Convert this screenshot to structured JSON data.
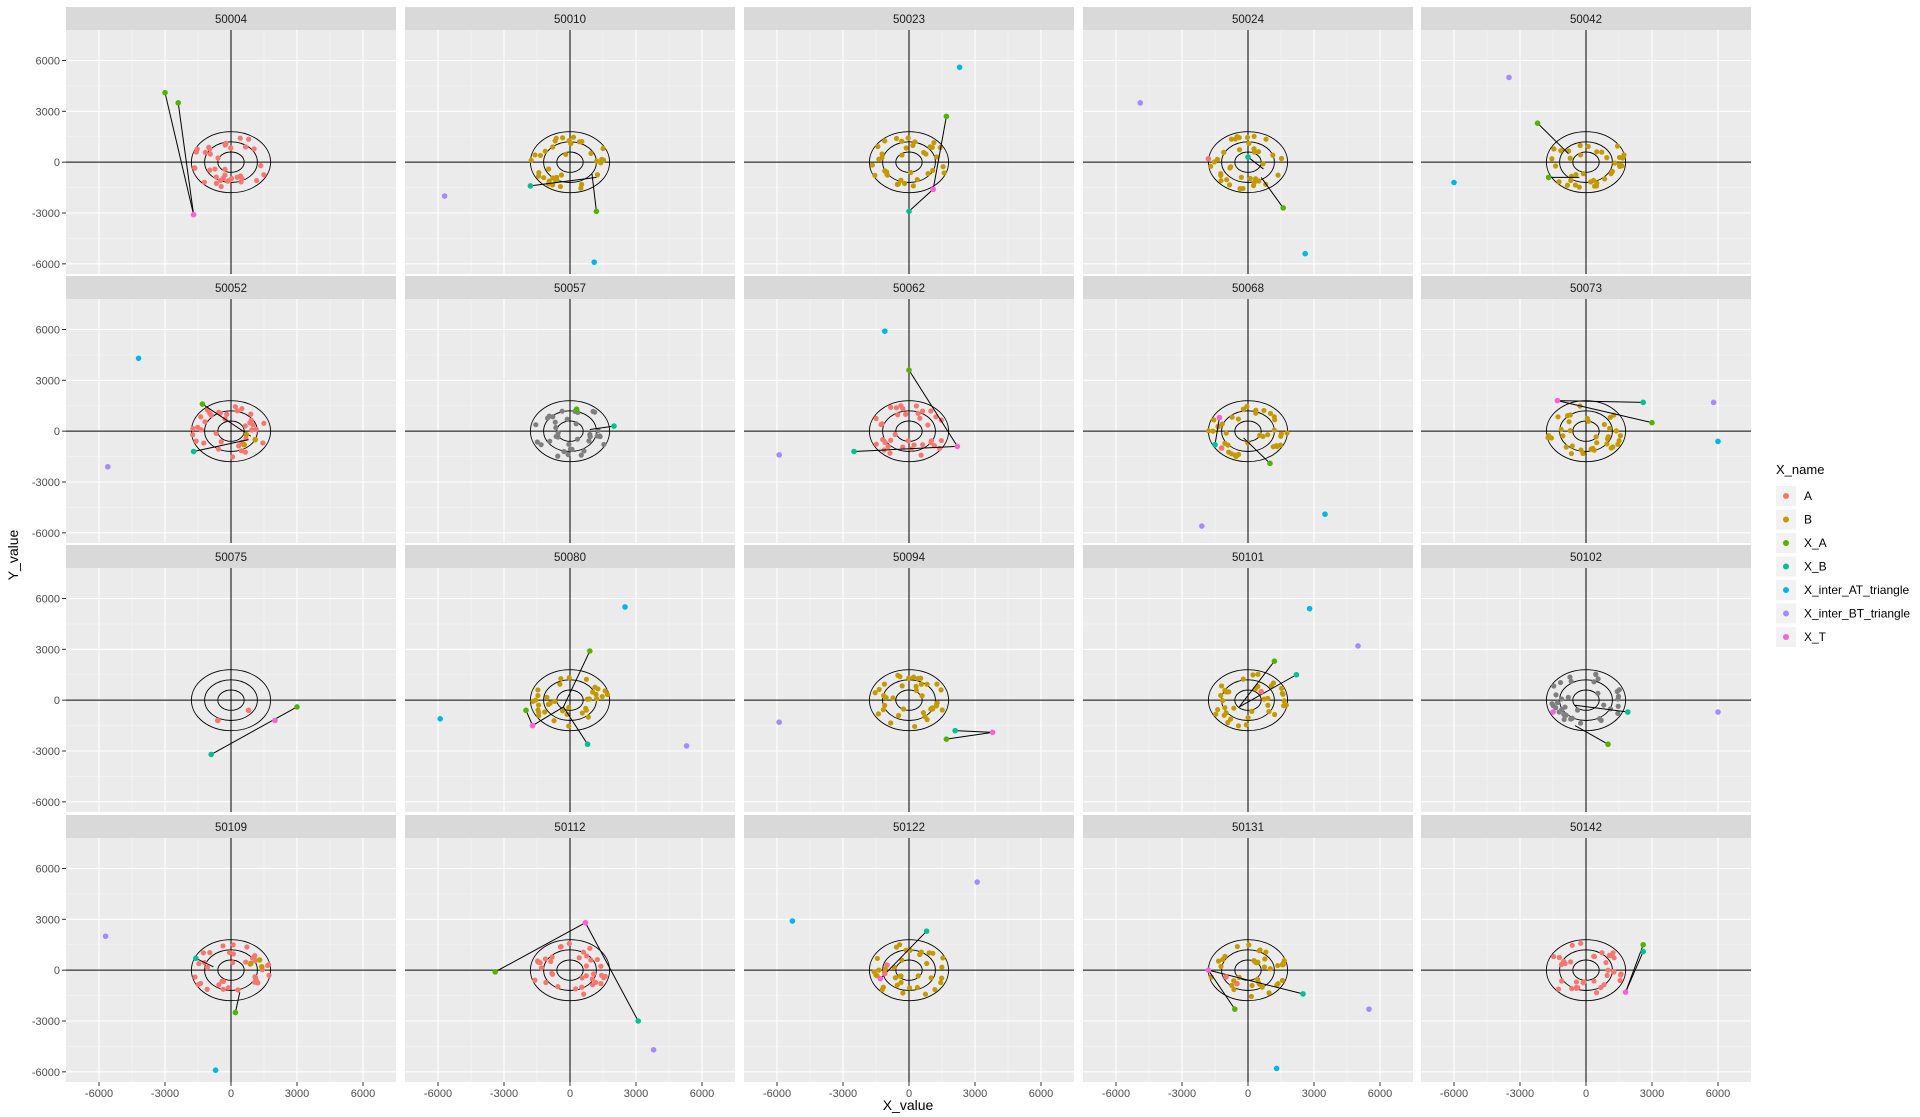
{
  "chart_data": {
    "type": "scatter",
    "xlabel": "X_value",
    "ylabel": "Y_value",
    "xlim": [
      -7500,
      7500
    ],
    "ylim": [
      -6600,
      7800
    ],
    "x_ticks": [
      -6000,
      -3000,
      0,
      3000,
      6000
    ],
    "y_ticks": [
      -6000,
      -3000,
      0,
      3000,
      6000
    ],
    "grid": true,
    "legend": {
      "title": "X_name",
      "position": "right",
      "entries": [
        {
          "name": "A",
          "color": "#F8766D"
        },
        {
          "name": "B",
          "color": "#C49A00"
        },
        {
          "name": "X_A",
          "color": "#53B400"
        },
        {
          "name": "X_B",
          "color": "#00C094"
        },
        {
          "name": "X_inter_AT_triangle",
          "color": "#00B6EB"
        },
        {
          "name": "X_inter_BT_triangle",
          "color": "#A58AFF"
        },
        {
          "name": "X_T",
          "color": "#FB61D7"
        }
      ]
    },
    "unlabeled_color": "#7F7F7F",
    "ellipses": [
      {
        "rx": 600,
        "ry": 600
      },
      {
        "rx": 1200,
        "ry": 1200
      },
      {
        "rx": 1800,
        "ry": 1800
      }
    ],
    "panels": [
      {
        "id": "50004",
        "cloud": "A",
        "special": [
          {
            "c": "X_A",
            "x": -3000,
            "y": 4100
          },
          {
            "c": "X_A",
            "x": -2400,
            "y": 3500
          },
          {
            "c": "X_T",
            "x": -1700,
            "y": -3100
          }
        ],
        "lines": [
          [
            -3000,
            4100,
            -1700,
            -3100
          ],
          [
            -2400,
            3500,
            -1700,
            -3100
          ]
        ]
      },
      {
        "id": "50010",
        "cloud": "B",
        "special": [
          {
            "c": "X_B",
            "x": -1800,
            "y": -1400
          },
          {
            "c": "X_A",
            "x": 1200,
            "y": -2900
          },
          {
            "c": "X_inter_AT_triangle",
            "x": 1100,
            "y": -5900
          },
          {
            "c": "X_inter_BT_triangle",
            "x": -5700,
            "y": -2000
          }
        ],
        "lines": [
          [
            -1800,
            -1400,
            1200,
            -900
          ],
          [
            1200,
            -2900,
            1000,
            -700
          ]
        ]
      },
      {
        "id": "50023",
        "cloud": "B",
        "special": [
          {
            "c": "X_A",
            "x": 1700,
            "y": 2700
          },
          {
            "c": "X_B",
            "x": 0,
            "y": -2900
          },
          {
            "c": "X_T",
            "x": 1100,
            "y": -1600
          },
          {
            "c": "X_inter_AT_triangle",
            "x": 2300,
            "y": 5600
          }
        ],
        "lines": [
          [
            1700,
            2700,
            1100,
            -1600
          ],
          [
            0,
            -2900,
            1100,
            -1600
          ]
        ]
      },
      {
        "id": "50024",
        "cloud": "B",
        "special": [
          {
            "c": "X_A",
            "x": 1600,
            "y": -2700
          },
          {
            "c": "X_B",
            "x": 0,
            "y": 300
          },
          {
            "c": "X_inter_AT_triangle",
            "x": 2600,
            "y": -5400
          },
          {
            "c": "X_inter_BT_triangle",
            "x": -4900,
            "y": 3500
          },
          {
            "c": "A",
            "x": -1800,
            "y": 200
          }
        ],
        "lines": [
          [
            1600,
            -2700,
            600,
            -900
          ],
          [
            0,
            300,
            700,
            -400
          ]
        ]
      },
      {
        "id": "50042",
        "cloud": "B",
        "special": [
          {
            "c": "X_A",
            "x": -2200,
            "y": 2300
          },
          {
            "c": "X_A",
            "x": -1700,
            "y": -900
          },
          {
            "c": "X_inter_AT_triangle",
            "x": -6000,
            "y": -1200
          },
          {
            "c": "X_inter_BT_triangle",
            "x": -3500,
            "y": 5000
          }
        ],
        "lines": [
          [
            -2200,
            2300,
            -800,
            500
          ],
          [
            -1700,
            -900,
            -300,
            -900
          ]
        ]
      },
      {
        "id": "50052",
        "cloud": "A",
        "special": [
          {
            "c": "X_A",
            "x": -1300,
            "y": 1600
          },
          {
            "c": "X_B",
            "x": -1700,
            "y": -1200
          },
          {
            "c": "X_inter_AT_triangle",
            "x": -4200,
            "y": 4300
          },
          {
            "c": "X_inter_BT_triangle",
            "x": -5600,
            "y": -2100
          },
          {
            "c": "B",
            "x": 700,
            "y": -200
          },
          {
            "c": "B",
            "x": 1100,
            "y": -500
          },
          {
            "c": "B",
            "x": 600,
            "y": -800
          }
        ],
        "lines": [
          [
            -1300,
            1600,
            900,
            -300
          ],
          [
            -1700,
            -1200,
            800,
            -500
          ]
        ]
      },
      {
        "id": "50057",
        "cloud": "gray",
        "special": [
          {
            "c": "X_B",
            "x": 2000,
            "y": 300
          },
          {
            "c": "X_A",
            "x": 300,
            "y": 1300
          }
        ],
        "lines": [
          [
            2000,
            300,
            900,
            100
          ]
        ]
      },
      {
        "id": "50062",
        "cloud": "A",
        "special": [
          {
            "c": "X_A",
            "x": 0,
            "y": 3600
          },
          {
            "c": "X_B",
            "x": -2500,
            "y": -1200
          },
          {
            "c": "X_T",
            "x": 2200,
            "y": -900
          },
          {
            "c": "X_inter_AT_triangle",
            "x": -1100,
            "y": 5900
          },
          {
            "c": "X_inter_BT_triangle",
            "x": -5900,
            "y": -1400
          }
        ],
        "lines": [
          [
            0,
            3600,
            2200,
            -900
          ],
          [
            -2500,
            -1200,
            2200,
            -900
          ]
        ]
      },
      {
        "id": "50068",
        "cloud": "B",
        "special": [
          {
            "c": "X_A",
            "x": 1000,
            "y": -1900
          },
          {
            "c": "X_T",
            "x": -1300,
            "y": 800
          },
          {
            "c": "X_inter_AT_triangle",
            "x": 3500,
            "y": -4900
          },
          {
            "c": "X_inter_BT_triangle",
            "x": -2100,
            "y": -5600
          },
          {
            "c": "A",
            "x": -1200,
            "y": -1000
          },
          {
            "c": "X_B",
            "x": -1500,
            "y": -800
          }
        ],
        "lines": [
          [
            1000,
            -1900,
            -200,
            -400
          ],
          [
            -1500,
            -800,
            -1300,
            800
          ]
        ]
      },
      {
        "id": "50073",
        "cloud": "B",
        "special": [
          {
            "c": "X_A",
            "x": 3000,
            "y": 500
          },
          {
            "c": "X_B",
            "x": 2600,
            "y": 1700
          },
          {
            "c": "X_T",
            "x": -1300,
            "y": 1800
          },
          {
            "c": "X_inter_AT_triangle",
            "x": 6000,
            "y": -600
          },
          {
            "c": "X_inter_BT_triangle",
            "x": 5800,
            "y": 1700
          }
        ],
        "lines": [
          [
            -1300,
            1800,
            2600,
            1700
          ],
          [
            -1300,
            1800,
            3000,
            500
          ]
        ]
      },
      {
        "id": "50075",
        "cloud": "none",
        "special": [
          {
            "c": "X_A",
            "x": 3000,
            "y": -400
          },
          {
            "c": "X_B",
            "x": -900,
            "y": -3200
          },
          {
            "c": "X_T",
            "x": 2000,
            "y": -1200
          },
          {
            "c": "A",
            "x": 800,
            "y": -600
          },
          {
            "c": "A",
            "x": -600,
            "y": -1200
          }
        ],
        "lines": [
          [
            -900,
            -3200,
            3000,
            -400
          ]
        ]
      },
      {
        "id": "50080",
        "cloud": "B",
        "special": [
          {
            "c": "X_A",
            "x": 900,
            "y": 2900
          },
          {
            "c": "X_A",
            "x": -2000,
            "y": -600
          },
          {
            "c": "X_B",
            "x": 800,
            "y": -2600
          },
          {
            "c": "X_T",
            "x": -1700,
            "y": -1500
          },
          {
            "c": "X_inter_AT_triangle",
            "x": 2500,
            "y": 5500
          },
          {
            "c": "X_inter_AT_triangle",
            "x": -5900,
            "y": -1100
          },
          {
            "c": "X_inter_BT_triangle",
            "x": 5300,
            "y": -2700
          }
        ],
        "lines": [
          [
            900,
            2900,
            -300,
            -400
          ],
          [
            800,
            -2600,
            -300,
            -400
          ],
          [
            -1700,
            -1500,
            -300,
            -400
          ],
          [
            -2000,
            -600,
            -1700,
            -1500
          ]
        ]
      },
      {
        "id": "50094",
        "cloud": "B",
        "special": [
          {
            "c": "X_A",
            "x": 1700,
            "y": -2300
          },
          {
            "c": "X_B",
            "x": 2100,
            "y": -1800
          },
          {
            "c": "X_T",
            "x": 3800,
            "y": -1900
          },
          {
            "c": "X_inter_BT_triangle",
            "x": -5900,
            "y": -1300
          }
        ],
        "lines": [
          [
            1700,
            -2300,
            3800,
            -1900
          ],
          [
            2100,
            -1800,
            3800,
            -1900
          ]
        ]
      },
      {
        "id": "50101",
        "cloud": "B",
        "special": [
          {
            "c": "X_A",
            "x": 1200,
            "y": 2300
          },
          {
            "c": "X_B",
            "x": 2200,
            "y": 1500
          },
          {
            "c": "X_inter_AT_triangle",
            "x": 2800,
            "y": 5400
          },
          {
            "c": "X_inter_BT_triangle",
            "x": 5000,
            "y": 3200
          },
          {
            "c": "A",
            "x": 600,
            "y": 500
          }
        ],
        "lines": [
          [
            1200,
            2300,
            -400,
            -400
          ],
          [
            2200,
            1500,
            -400,
            -400
          ]
        ]
      },
      {
        "id": "50102",
        "cloud": "gray",
        "special": [
          {
            "c": "X_A",
            "x": 1000,
            "y": -2600
          },
          {
            "c": "X_B",
            "x": 1900,
            "y": -700
          },
          {
            "c": "X_T",
            "x": -1500,
            "y": -700
          },
          {
            "c": "X_inter_BT_triangle",
            "x": 6000,
            "y": -700
          }
        ],
        "lines": [
          [
            1000,
            -2600,
            -500,
            -1500
          ],
          [
            1900,
            -700,
            -500,
            -300
          ]
        ]
      },
      {
        "id": "50109",
        "cloud": "A",
        "special": [
          {
            "c": "X_A",
            "x": 200,
            "y": -2500
          },
          {
            "c": "X_B",
            "x": -1600,
            "y": 700
          },
          {
            "c": "X_inter_AT_triangle",
            "x": -700,
            "y": -5900
          },
          {
            "c": "X_inter_BT_triangle",
            "x": -5700,
            "y": 2000
          },
          {
            "c": "B",
            "x": 900,
            "y": 400
          },
          {
            "c": "B",
            "x": 1300,
            "y": 600
          },
          {
            "c": "B",
            "x": 1400,
            "y": 200
          }
        ],
        "lines": [
          [
            200,
            -2500,
            400,
            -1300
          ],
          [
            -1600,
            700,
            -800,
            200
          ]
        ]
      },
      {
        "id": "50112",
        "cloud": "A",
        "special": [
          {
            "c": "X_A",
            "x": -3400,
            "y": -100
          },
          {
            "c": "X_B",
            "x": 3100,
            "y": -3000
          },
          {
            "c": "X_T",
            "x": 700,
            "y": 2800
          },
          {
            "c": "X_inter_BT_triangle",
            "x": 3800,
            "y": -4700
          }
        ],
        "lines": [
          [
            -3400,
            -100,
            700,
            2800
          ],
          [
            3100,
            -3000,
            700,
            2800
          ]
        ]
      },
      {
        "id": "50122",
        "cloud": "B",
        "special": [
          {
            "c": "X_B",
            "x": 800,
            "y": 2300
          },
          {
            "c": "X_inter_AT_triangle",
            "x": -5300,
            "y": 2900
          },
          {
            "c": "X_inter_BT_triangle",
            "x": 3100,
            "y": 5200
          },
          {
            "c": "X_T",
            "x": -1300,
            "y": -500
          },
          {
            "c": "A",
            "x": -1100,
            "y": -200
          },
          {
            "c": "A",
            "x": -1000,
            "y": 300
          }
        ],
        "lines": [
          [
            800,
            2300,
            -1300,
            -500
          ]
        ]
      },
      {
        "id": "50131",
        "cloud": "B",
        "special": [
          {
            "c": "X_A",
            "x": -600,
            "y": -2300
          },
          {
            "c": "X_B",
            "x": 2500,
            "y": -1400
          },
          {
            "c": "X_T",
            "x": -1800,
            "y": 0
          },
          {
            "c": "X_inter_AT_triangle",
            "x": 1300,
            "y": -5800
          },
          {
            "c": "X_inter_BT_triangle",
            "x": 5500,
            "y": -2300
          },
          {
            "c": "A",
            "x": -1000,
            "y": -400
          },
          {
            "c": "A",
            "x": -500,
            "y": -800
          }
        ],
        "lines": [
          [
            -600,
            -2300,
            -1800,
            0
          ],
          [
            2500,
            -1400,
            -1800,
            0
          ]
        ]
      },
      {
        "id": "50142",
        "cloud": "A",
        "special": [
          {
            "c": "X_A",
            "x": 2600,
            "y": 1500
          },
          {
            "c": "X_B",
            "x": 2600,
            "y": 1100
          },
          {
            "c": "X_T",
            "x": 1800,
            "y": -1300
          }
        ],
        "lines": [
          [
            2600,
            1500,
            1800,
            -1300
          ],
          [
            2600,
            1100,
            1800,
            -1300
          ]
        ]
      }
    ]
  }
}
